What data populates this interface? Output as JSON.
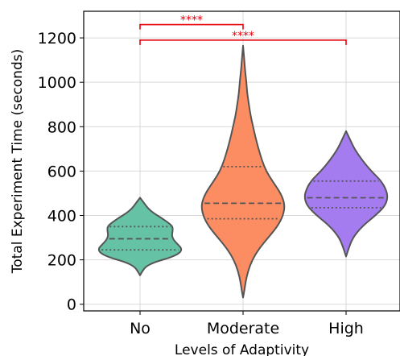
{
  "chart_data": {
    "type": "violin",
    "xlabel": "Levels of Adaptivity",
    "ylabel": "Total Experiment Time (seconds)",
    "categories": [
      "No",
      "Moderate",
      "High"
    ],
    "ylim": [
      -30,
      1320
    ],
    "yticks": [
      0,
      200,
      400,
      600,
      800,
      1000,
      1200
    ],
    "grid": true,
    "colors": [
      "#66c2a5",
      "#fc8d62",
      "#a57bf0"
    ],
    "outline_color": "#555555",
    "violins": [
      {
        "category": "No",
        "min": 130,
        "max": 480,
        "q1": 245,
        "median": 295,
        "q3": 350,
        "profile": [
          [
            130,
            0
          ],
          [
            150,
            0.06
          ],
          [
            170,
            0.14
          ],
          [
            190,
            0.35
          ],
          [
            210,
            0.72
          ],
          [
            230,
            0.95
          ],
          [
            250,
            1.0
          ],
          [
            270,
            0.9
          ],
          [
            290,
            0.8
          ],
          [
            310,
            0.76
          ],
          [
            330,
            0.78
          ],
          [
            350,
            0.78
          ],
          [
            370,
            0.66
          ],
          [
            390,
            0.5
          ],
          [
            410,
            0.33
          ],
          [
            430,
            0.2
          ],
          [
            450,
            0.12
          ],
          [
            470,
            0.04
          ],
          [
            480,
            0
          ]
        ]
      },
      {
        "category": "Moderate",
        "min": 30,
        "max": 1165,
        "q1": 385,
        "median": 455,
        "q3": 620,
        "profile": [
          [
            30,
            0
          ],
          [
            60,
            0.03
          ],
          [
            100,
            0.06
          ],
          [
            150,
            0.12
          ],
          [
            200,
            0.22
          ],
          [
            250,
            0.38
          ],
          [
            300,
            0.6
          ],
          [
            350,
            0.82
          ],
          [
            400,
            0.96
          ],
          [
            450,
            1.0
          ],
          [
            500,
            0.9
          ],
          [
            550,
            0.72
          ],
          [
            600,
            0.55
          ],
          [
            650,
            0.45
          ],
          [
            700,
            0.37
          ],
          [
            750,
            0.3
          ],
          [
            800,
            0.24
          ],
          [
            850,
            0.18
          ],
          [
            900,
            0.14
          ],
          [
            950,
            0.1
          ],
          [
            1000,
            0.08
          ],
          [
            1050,
            0.05
          ],
          [
            1100,
            0.03
          ],
          [
            1165,
            0
          ]
        ]
      },
      {
        "category": "High",
        "min": 215,
        "max": 780,
        "q1": 435,
        "median": 480,
        "q3": 555,
        "profile": [
          [
            215,
            0
          ],
          [
            250,
            0.06
          ],
          [
            300,
            0.16
          ],
          [
            350,
            0.38
          ],
          [
            400,
            0.7
          ],
          [
            440,
            0.92
          ],
          [
            480,
            1.0
          ],
          [
            520,
            0.95
          ],
          [
            560,
            0.82
          ],
          [
            600,
            0.6
          ],
          [
            650,
            0.38
          ],
          [
            700,
            0.2
          ],
          [
            740,
            0.1
          ],
          [
            780,
            0
          ]
        ]
      }
    ],
    "annotations": [
      {
        "text": "****",
        "from": "No",
        "to": "Moderate",
        "y": 1260,
        "color": "#e8000b"
      },
      {
        "text": "****",
        "from": "No",
        "to": "High",
        "y": 1190,
        "color": "#e8000b"
      }
    ]
  }
}
